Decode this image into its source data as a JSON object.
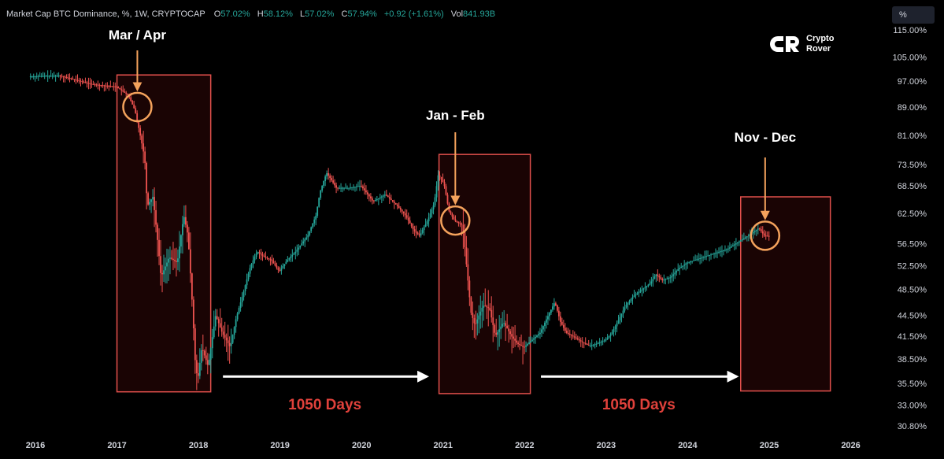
{
  "header": {
    "symbol_title": "Market Cap BTC Dominance, %, 1W, CRYPTOCAP",
    "o_label": "O",
    "o_value": "57.02%",
    "h_label": "H",
    "h_value": "58.12%",
    "l_label": "L",
    "l_value": "57.02%",
    "c_label": "C",
    "c_value": "57.94%",
    "change": "+0.92 (+1.61%)",
    "vol_label": "Vol",
    "vol_value": "841.93",
    "vol_suffix": "B"
  },
  "unit_button": "%",
  "logo": {
    "line1": "Crypto",
    "line2": "Rover"
  },
  "colors": {
    "background": "#000000",
    "up": "#26a69a",
    "down": "#ef5350",
    "highlight_box": "#e2504c",
    "circle": "#f4a25c",
    "days_text": "#e0413b",
    "axis_text": "#d1d4dc"
  },
  "chart_data": {
    "type": "line",
    "title": "Market Cap BTC Dominance, %, 1W, CRYPTOCAP",
    "x_axis": {
      "ticks": [
        "2016",
        "2017",
        "2018",
        "2019",
        "2020",
        "2021",
        "2022",
        "2023",
        "2024",
        "2025",
        "2026"
      ],
      "range": [
        2015.9,
        2026.3
      ]
    },
    "y_axis": {
      "scale": "log",
      "ticks": [
        "115.00%",
        "105.00%",
        "97.00%",
        "89.00%",
        "81.00%",
        "73.50%",
        "68.50%",
        "62.50%",
        "56.50%",
        "52.50%",
        "48.50%",
        "44.50%",
        "41.50%",
        "38.50%",
        "35.50%",
        "33.00%",
        "30.80%"
      ],
      "range": [
        29.5,
        120
      ]
    },
    "grid": false,
    "series": [
      {
        "points": [
          [
            2015.93,
            98.5
          ],
          [
            2016.3,
            98.8
          ],
          [
            2016.7,
            96.0
          ],
          [
            2017.0,
            95.2
          ],
          [
            2017.15,
            92.5
          ],
          [
            2017.23,
            88.0
          ],
          [
            2017.35,
            75.0
          ],
          [
            2017.38,
            64.0
          ],
          [
            2017.45,
            66.0
          ],
          [
            2017.55,
            50.5
          ],
          [
            2017.65,
            54.0
          ],
          [
            2017.75,
            53.0
          ],
          [
            2017.83,
            62.0
          ],
          [
            2017.88,
            58.0
          ],
          [
            2017.97,
            38.0
          ],
          [
            2018.0,
            35.8
          ],
          [
            2018.05,
            40.0
          ],
          [
            2018.13,
            37.5
          ],
          [
            2018.22,
            44.5
          ],
          [
            2018.3,
            42.0
          ],
          [
            2018.4,
            40.0
          ],
          [
            2018.47,
            44.0
          ],
          [
            2018.55,
            47.5
          ],
          [
            2018.65,
            52.5
          ],
          [
            2018.73,
            55.0
          ],
          [
            2018.82,
            54.0
          ],
          [
            2018.9,
            53.5
          ],
          [
            2019.0,
            51.5
          ],
          [
            2019.1,
            53.5
          ],
          [
            2019.2,
            55.0
          ],
          [
            2019.35,
            58.0
          ],
          [
            2019.45,
            62.0
          ],
          [
            2019.5,
            67.0
          ],
          [
            2019.58,
            71.5
          ],
          [
            2019.7,
            68.0
          ],
          [
            2019.85,
            68.0
          ],
          [
            2020.0,
            68.5
          ],
          [
            2020.15,
            65.0
          ],
          [
            2020.3,
            66.5
          ],
          [
            2020.45,
            64.0
          ],
          [
            2020.55,
            62.0
          ],
          [
            2020.65,
            59.0
          ],
          [
            2020.72,
            58.0
          ],
          [
            2020.82,
            61.0
          ],
          [
            2020.9,
            64.5
          ],
          [
            2020.95,
            71.0
          ],
          [
            2021.02,
            69.0
          ],
          [
            2021.08,
            63.0
          ],
          [
            2021.15,
            61.0
          ],
          [
            2021.25,
            60.0
          ],
          [
            2021.3,
            52.0
          ],
          [
            2021.35,
            45.0
          ],
          [
            2021.4,
            43.0
          ],
          [
            2021.5,
            46.0
          ],
          [
            2021.58,
            45.5
          ],
          [
            2021.65,
            41.5
          ],
          [
            2021.75,
            43.5
          ],
          [
            2021.85,
            41.5
          ],
          [
            2021.92,
            40.5
          ],
          [
            2022.0,
            40.0
          ],
          [
            2022.1,
            41.0
          ],
          [
            2022.2,
            42.0
          ],
          [
            2022.3,
            44.5
          ],
          [
            2022.38,
            46.5
          ],
          [
            2022.45,
            43.5
          ],
          [
            2022.52,
            42.0
          ],
          [
            2022.6,
            41.5
          ],
          [
            2022.7,
            40.8
          ],
          [
            2022.8,
            40.2
          ],
          [
            2022.9,
            40.5
          ],
          [
            2023.0,
            41.0
          ],
          [
            2023.08,
            42.0
          ],
          [
            2023.15,
            43.5
          ],
          [
            2023.25,
            46.0
          ],
          [
            2023.35,
            47.5
          ],
          [
            2023.45,
            48.5
          ],
          [
            2023.55,
            49.5
          ],
          [
            2023.62,
            51.0
          ],
          [
            2023.7,
            50.0
          ],
          [
            2023.8,
            50.5
          ],
          [
            2023.9,
            52.0
          ],
          [
            2024.0,
            53.0
          ],
          [
            2024.1,
            53.5
          ],
          [
            2024.2,
            54.0
          ],
          [
            2024.3,
            54.5
          ],
          [
            2024.4,
            55.0
          ],
          [
            2024.5,
            55.5
          ],
          [
            2024.6,
            56.5
          ],
          [
            2024.7,
            57.5
          ],
          [
            2024.8,
            58.5
          ],
          [
            2024.88,
            59.5
          ],
          [
            2024.95,
            58.0
          ],
          [
            2025.0,
            57.94
          ]
        ]
      }
    ],
    "annotations": [
      {
        "label": "Mar / Apr",
        "x": 2017.25,
        "y": 89.0
      },
      {
        "label": "Jan - Feb",
        "x": 2021.15,
        "y": 61.0
      },
      {
        "label": "Nov - Dec",
        "x": 2024.95,
        "y": 58.0
      }
    ],
    "highlight_ranges": [
      {
        "x_start": 2017.0,
        "x_end": 2018.15,
        "y_top": 99.0,
        "y_bottom": 34.5
      },
      {
        "x_start": 2020.95,
        "x_end": 2022.07,
        "y_top": 76.0,
        "y_bottom": 34.3
      },
      {
        "x_start": 2024.65,
        "x_end": 2025.75,
        "y_top": 66.0,
        "y_bottom": 34.6
      }
    ],
    "spans": [
      {
        "label": "1050 Days",
        "x_start": 2018.3,
        "x_end": 2020.8,
        "y": 36.3
      },
      {
        "label": "1050 Days",
        "x_start": 2022.2,
        "x_end": 2024.6,
        "y": 36.3
      }
    ]
  }
}
